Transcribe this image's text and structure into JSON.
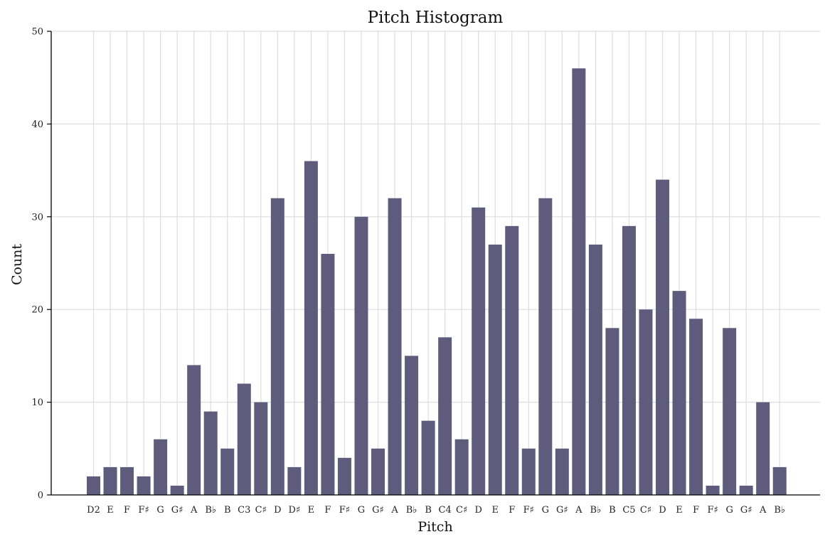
{
  "chart_data": {
    "type": "bar",
    "title": "Pitch Histogram",
    "xlabel": "Pitch",
    "ylabel": "Count",
    "ylim": [
      0,
      50
    ],
    "yticks": [
      0,
      10,
      20,
      30,
      40,
      50
    ],
    "grid": true,
    "bar_color": "#5f5b7d",
    "grid_color": "#dddddd",
    "categories": [
      "D2",
      "E",
      "F",
      "F♯",
      "G",
      "G♯",
      "A",
      "B♭",
      "B",
      "C3",
      "C♯",
      "D",
      "D♯",
      "E",
      "F",
      "F♯",
      "G",
      "G♯",
      "A",
      "B♭",
      "B",
      "C4",
      "C♯",
      "D",
      "E",
      "F",
      "F♯",
      "G",
      "G♯",
      "A",
      "B♭",
      "B",
      "C5",
      "C♯",
      "D",
      "E",
      "F",
      "F♯",
      "G",
      "G♯",
      "A",
      "B♭"
    ],
    "values": [
      2,
      3,
      3,
      2,
      6,
      1,
      14,
      9,
      5,
      12,
      10,
      32,
      3,
      36,
      26,
      4,
      30,
      5,
      32,
      15,
      8,
      17,
      6,
      31,
      27,
      29,
      5,
      32,
      5,
      46,
      27,
      18,
      29,
      20,
      34,
      22,
      19,
      1,
      18,
      1,
      10,
      3
    ]
  }
}
